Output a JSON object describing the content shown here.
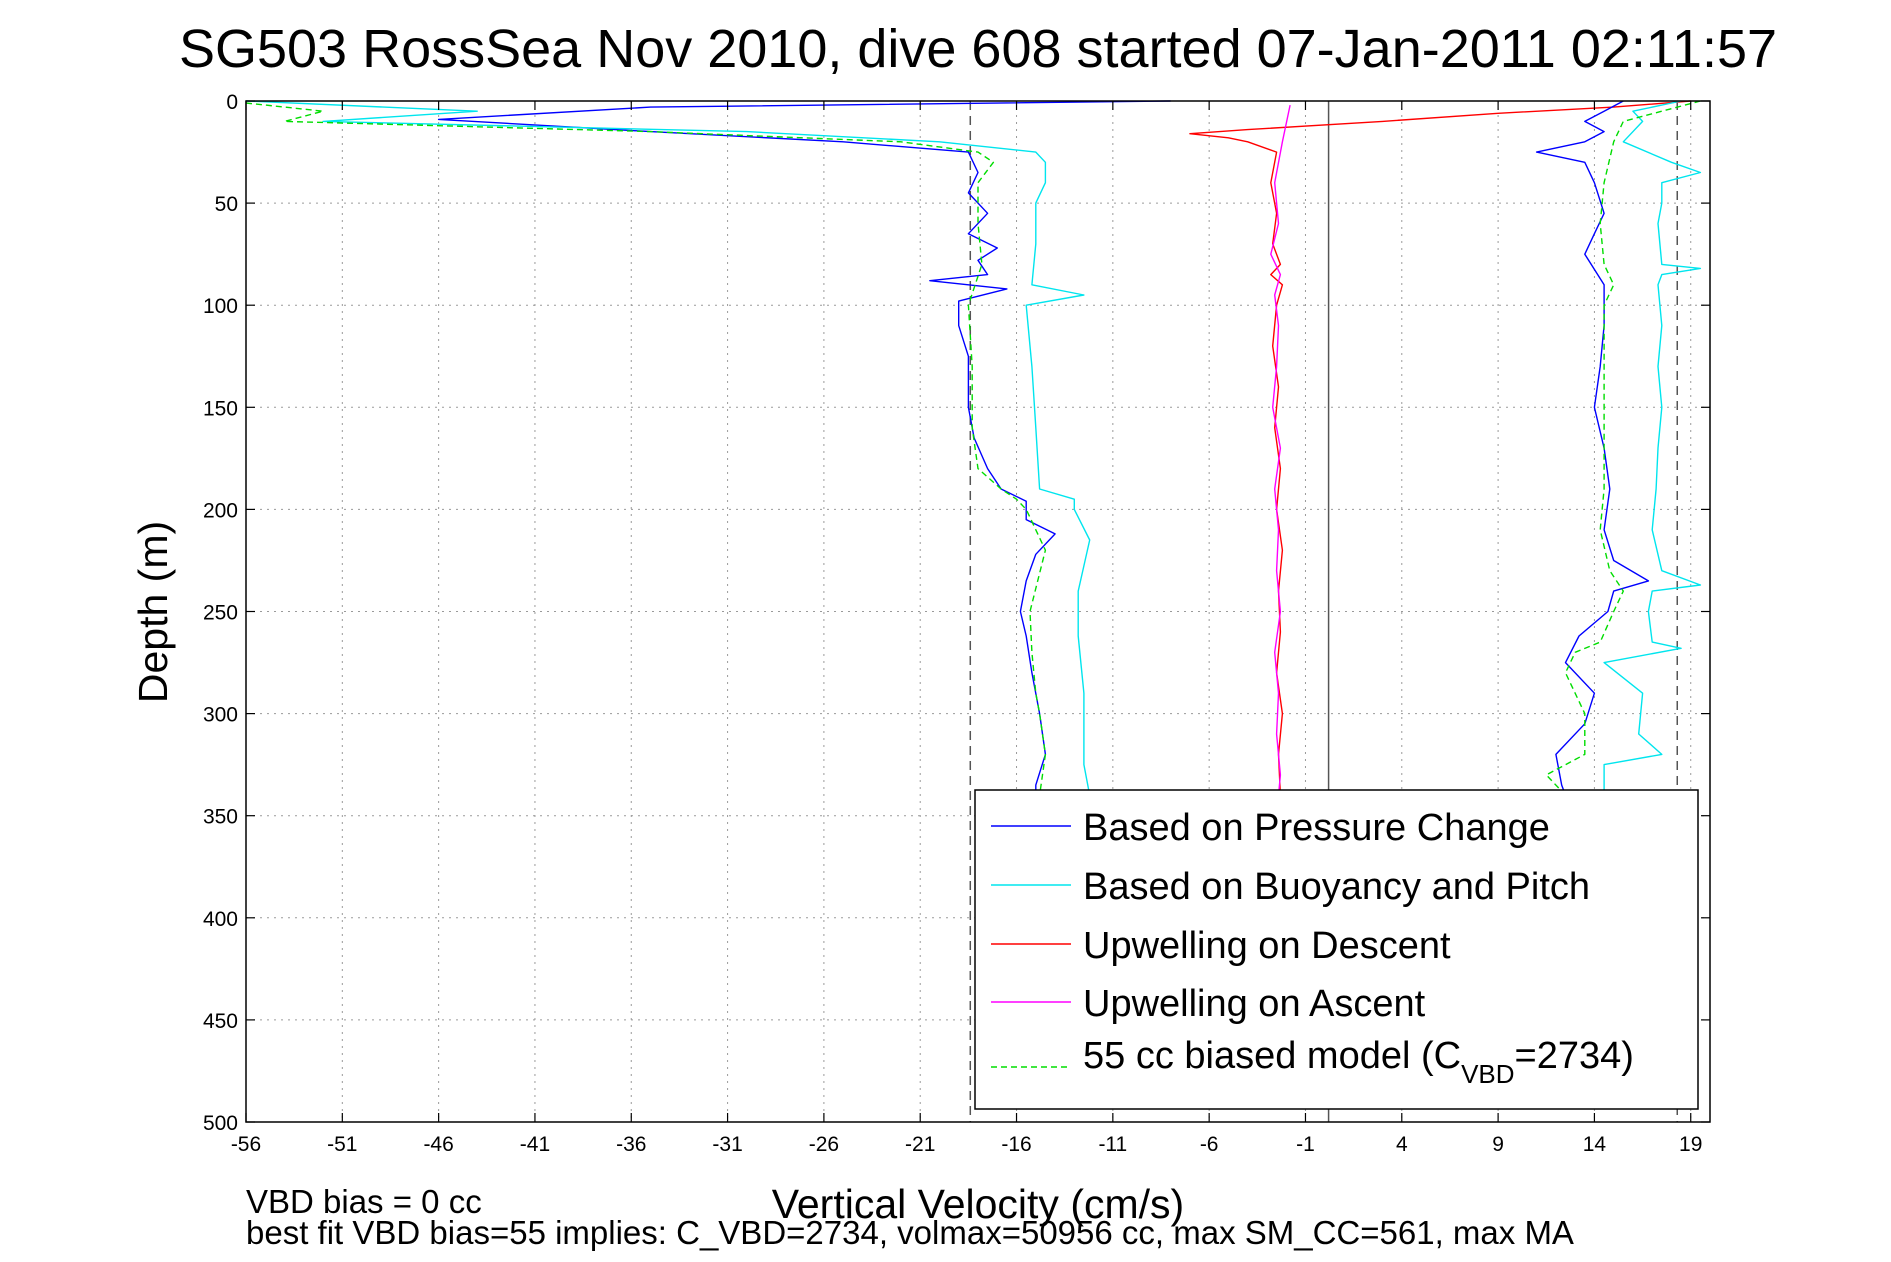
{
  "chart_data": {
    "type": "line",
    "title": "SG503 RossSea Nov 2010, dive 608 started 07-Jan-2011 02:11:57",
    "xlabel": "Vertical Velocity (cm/s)",
    "ylabel": "Depth (m)",
    "xlim": [
      -56,
      20
    ],
    "ylim": [
      500,
      0
    ],
    "y_reversed": true,
    "grid": true,
    "xticks": [
      -56,
      -51,
      -46,
      -41,
      -36,
      -31,
      -26,
      -21,
      -16,
      -11,
      -6,
      -1,
      4,
      9,
      14,
      19
    ],
    "yticks": [
      0,
      50,
      100,
      150,
      200,
      250,
      300,
      350,
      400,
      450,
      500
    ],
    "legend_position": "lower-right",
    "reference_lines": [
      {
        "x": -18.4,
        "style": "dashed",
        "color": "#555555"
      },
      {
        "x": 18.3,
        "style": "dashed",
        "color": "#555555"
      },
      {
        "x": 0.2,
        "style": "solid",
        "color": "#555555"
      }
    ],
    "series": [
      {
        "name": "Based on Pressure Change",
        "color": "#0000ff",
        "y": [
          0,
          3,
          9,
          15,
          20,
          25,
          35,
          45,
          55,
          65,
          72,
          78,
          85,
          88,
          92,
          98,
          110,
          125,
          140,
          150,
          165,
          180,
          190,
          196,
          205,
          212,
          222,
          235,
          250,
          262,
          280,
          300,
          320,
          335,
          340
        ],
        "x": [
          -8,
          -35,
          -46,
          -35,
          -25,
          -18.5,
          -18,
          -18.5,
          -17.5,
          -18.5,
          -17,
          -18,
          -17.5,
          -20.5,
          -16.5,
          -19,
          -19,
          -18.5,
          -18.5,
          -18.5,
          -18.2,
          -17.5,
          -16.8,
          -15.5,
          -15.5,
          -14,
          -15,
          -15.5,
          -15.8,
          -15.5,
          -15.2,
          -14.8,
          -14.5,
          -15,
          -15
        ]
      },
      {
        "name": "Based on Buoyancy and Pitch",
        "color": "#00e5ee",
        "y": [
          0,
          5,
          10,
          15,
          20,
          25,
          30,
          40,
          50,
          70,
          90,
          95,
          100,
          130,
          160,
          190,
          195,
          200,
          215,
          240,
          262,
          290,
          310,
          325,
          340
        ],
        "x": [
          -56,
          -44,
          -52,
          -30,
          -20,
          -15,
          -14.5,
          -14.5,
          -15,
          -15,
          -15.2,
          -12.5,
          -15.5,
          -15.2,
          -15,
          -14.8,
          -13,
          -13,
          -12.2,
          -12.8,
          -12.8,
          -12.5,
          -12.5,
          -12.5,
          -12.2
        ]
      },
      {
        "name": "Upwelling on Descent",
        "color": "#ff0000",
        "y": [
          0,
          3,
          6,
          10,
          14,
          16,
          18,
          20,
          25,
          40,
          55,
          70,
          80,
          85,
          90,
          100,
          120,
          140,
          160,
          180,
          200,
          220,
          240,
          260,
          280,
          300,
          320,
          340
        ],
        "x": [
          19,
          15,
          9,
          3,
          -4,
          -7,
          -5,
          -4,
          -2.5,
          -2.8,
          -2.5,
          -2.7,
          -2.3,
          -2.8,
          -2.2,
          -2.5,
          -2.7,
          -2.4,
          -2.6,
          -2.3,
          -2.5,
          -2.2,
          -2.4,
          -2.3,
          -2.5,
          -2.2,
          -2.4,
          -2.3
        ]
      },
      {
        "name": "Upwelling on Ascent",
        "color": "#ff00ff",
        "y": [
          2,
          20,
          40,
          60,
          75,
          85,
          95,
          110,
          130,
          150,
          170,
          190,
          210,
          230,
          250,
          270,
          290,
          310,
          330,
          340
        ],
        "x": [
          -1.8,
          -2.2,
          -2.6,
          -2.4,
          -2.8,
          -2.3,
          -2.6,
          -2.4,
          -2.5,
          -2.7,
          -2.3,
          -2.6,
          -2.4,
          -2.5,
          -2.3,
          -2.6,
          -2.4,
          -2.5,
          -2.3,
          -2.4
        ]
      },
      {
        "name": "55 cc biased model (C_VBD=2734)",
        "color": "#00dd00",
        "y": [
          1,
          5,
          10,
          15,
          20,
          25,
          30,
          40,
          60,
          80,
          100,
          130,
          160,
          180,
          190,
          195,
          200,
          220,
          250,
          270,
          290,
          300,
          320,
          340
        ],
        "x": [
          -56,
          -52,
          -54,
          -35,
          -22,
          -18,
          -17.2,
          -18,
          -18,
          -17.8,
          -18.5,
          -18.3,
          -18.3,
          -18,
          -16.8,
          -16,
          -15.5,
          -14.5,
          -15.3,
          -15.2,
          -15,
          -14.8,
          -14.5,
          -14.8
        ]
      },
      {
        "name": "ascent_pressure_change",
        "color": "#0000ff",
        "y": [
          0,
          5,
          10,
          15,
          20,
          25,
          30,
          40,
          55,
          65,
          75,
          90,
          110,
          130,
          150,
          170,
          190,
          210,
          225,
          235,
          240,
          250,
          262,
          275,
          290,
          305,
          320,
          335,
          340
        ],
        "x": [
          15.5,
          14.5,
          13.5,
          14.5,
          13.5,
          11,
          13.5,
          14,
          14.5,
          14,
          13.5,
          14.5,
          14.5,
          14.3,
          14,
          14.5,
          14.8,
          14.5,
          15,
          16.8,
          15,
          14.7,
          13.2,
          12.5,
          14,
          13.5,
          12,
          12.3,
          12.5
        ]
      },
      {
        "name": "ascent_buoyancy_pitch",
        "color": "#00e5ee",
        "y": [
          0,
          5,
          10,
          20,
          30,
          35,
          40,
          50,
          60,
          80,
          82,
          85,
          90,
          110,
          130,
          150,
          170,
          190,
          210,
          230,
          237,
          240,
          250,
          265,
          268,
          275,
          290,
          310,
          320,
          325,
          340
        ],
        "x": [
          18.5,
          16,
          16.5,
          15.5,
          18,
          19.5,
          17.5,
          17.5,
          17.3,
          17.5,
          19.5,
          17.5,
          17.3,
          17.5,
          17.3,
          17.5,
          17.3,
          17.2,
          17,
          17.5,
          19.5,
          17,
          16.8,
          17,
          18.5,
          14.5,
          16.5,
          16.3,
          17.5,
          14.5,
          14.5
        ]
      },
      {
        "name": "ascent_biased_model",
        "color": "#00dd00",
        "y": [
          0,
          10,
          20,
          40,
          60,
          80,
          90,
          100,
          130,
          160,
          190,
          210,
          230,
          240,
          250,
          265,
          270,
          280,
          300,
          320,
          330,
          340
        ],
        "x": [
          19.5,
          15.5,
          15,
          14.5,
          14.3,
          14.5,
          15,
          14.5,
          14.5,
          14.5,
          14.5,
          14.3,
          14.8,
          15.5,
          15,
          14.3,
          13,
          12.5,
          13.5,
          13.5,
          11.5,
          12.5
        ]
      }
    ]
  },
  "legend": {
    "items": [
      {
        "label": "Based on Pressure Change",
        "color": "#0000ff",
        "dashed": false
      },
      {
        "label": "Based on Buoyancy and Pitch",
        "color": "#00e5ee",
        "dashed": false
      },
      {
        "label": "Upwelling on Descent",
        "color": "#ff0000",
        "dashed": false
      },
      {
        "label": "Upwelling on Ascent",
        "color": "#ff00ff",
        "dashed": false
      },
      {
        "label_prefix": "55 cc biased model (C",
        "label_sub": "VBD",
        "label_suffix": "=2734)",
        "color": "#00dd00",
        "dashed": true
      }
    ]
  },
  "notes": {
    "line1": "VBD bias = 0 cc",
    "line2": "best fit VBD bias=55 implies: C_VBD=2734, volmax=50956 cc, max SM_CC=561, max MA"
  }
}
